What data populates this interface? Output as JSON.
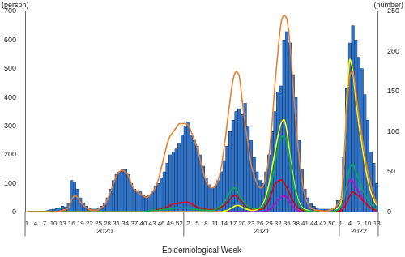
{
  "chart_data": {
    "type": "bar",
    "xlabel": "Epidemiological Week",
    "ylabel": "(person)",
    "y2label": "(number)",
    "categories": [
      "1",
      null,
      null,
      "4",
      null,
      null,
      "7",
      null,
      null,
      "10",
      null,
      null,
      "13",
      null,
      null,
      "16",
      null,
      null,
      "19",
      null,
      null,
      "22",
      null,
      null,
      "25",
      null,
      null,
      "28",
      null,
      null,
      "31",
      null,
      null,
      "34",
      null,
      null,
      "37",
      null,
      null,
      "40",
      null,
      null,
      "43",
      null,
      null,
      "46",
      null,
      null,
      "49",
      null,
      null,
      "52",
      null,
      null,
      "2",
      null,
      null,
      "5",
      null,
      null,
      "8",
      null,
      null,
      "11",
      null,
      null,
      "14",
      null,
      null,
      "17",
      null,
      null,
      "20",
      null,
      null,
      "23",
      null,
      null,
      "26",
      null,
      null,
      "29",
      null,
      null,
      "32",
      null,
      null,
      "35",
      null,
      null,
      "38",
      null,
      null,
      "41",
      null,
      null,
      "44",
      null,
      null,
      "47",
      null,
      null,
      "50",
      null,
      null,
      "1",
      null,
      null,
      "4",
      null,
      null,
      "7",
      null,
      null,
      "10",
      null,
      null,
      "13"
    ],
    "x_groups": [
      {
        "label": "2020",
        "size": 53
      },
      {
        "label": "2021",
        "size": 52
      },
      {
        "label": "2022",
        "size": 13
      }
    ],
    "ylim": [
      0,
      700
    ],
    "yticks": [
      0,
      100,
      200,
      300,
      400,
      500,
      600,
      700
    ],
    "y2lim": [
      0,
      250
    ],
    "y2ticks": [
      0,
      50,
      100,
      150,
      200,
      250
    ],
    "grid": false,
    "series": [
      {
        "type": "bar",
        "axis": "y",
        "color": "#2f73c9",
        "values": [
          0,
          0,
          0,
          0,
          0,
          2,
          3,
          5,
          8,
          10,
          12,
          15,
          20,
          18,
          30,
          110,
          105,
          80,
          50,
          30,
          20,
          15,
          10,
          10,
          15,
          20,
          30,
          50,
          80,
          110,
          130,
          140,
          150,
          150,
          130,
          100,
          80,
          75,
          70,
          60,
          55,
          60,
          70,
          90,
          100,
          120,
          140,
          170,
          200,
          210,
          220,
          240,
          270,
          300,
          315,
          270,
          250,
          230,
          200,
          160,
          120,
          95,
          85,
          90,
          110,
          140,
          180,
          230,
          280,
          320,
          350,
          360,
          340,
          380,
          300,
          250,
          190,
          140,
          110,
          100,
          140,
          200,
          280,
          350,
          420,
          440,
          600,
          630,
          590,
          480,
          400,
          250,
          150,
          80,
          50,
          30,
          20,
          15,
          10,
          10,
          10,
          10,
          10,
          15,
          40,
          40,
          190,
          430,
          590,
          650,
          600,
          540,
          500,
          410,
          320,
          210,
          170,
          100
        ]
      },
      {
        "type": "line",
        "axis": "y2",
        "color": "#ed7d31",
        "values": [
          0,
          0,
          0,
          0,
          0,
          0,
          0,
          0,
          0,
          0,
          0,
          1,
          2,
          3,
          5,
          15,
          20,
          18,
          12,
          8,
          5,
          3,
          2,
          2,
          3,
          5,
          8,
          15,
          25,
          35,
          45,
          50,
          52,
          50,
          45,
          35,
          28,
          25,
          22,
          20,
          18,
          20,
          25,
          30,
          40,
          55,
          70,
          85,
          95,
          100,
          105,
          110,
          110,
          110,
          108,
          100,
          90,
          80,
          65,
          50,
          38,
          32,
          30,
          32,
          40,
          55,
          80,
          110,
          140,
          165,
          175,
          170,
          140,
          110,
          85,
          60,
          45,
          35,
          30,
          32,
          45,
          70,
          110,
          160,
          200,
          235,
          245,
          240,
          210,
          160,
          110,
          70,
          40,
          20,
          10,
          5,
          3,
          2,
          2,
          1,
          1,
          2,
          3,
          5,
          10,
          15,
          60,
          130,
          170,
          175,
          150,
          120,
          95,
          70,
          50,
          35,
          20,
          10
        ]
      },
      {
        "type": "line",
        "axis": "y2",
        "color": "#00b050",
        "values": [
          0,
          0,
          0,
          0,
          0,
          0,
          0,
          0,
          0,
          0,
          0,
          0,
          0,
          0,
          0,
          0,
          0,
          0,
          0,
          0,
          0,
          0,
          0,
          0,
          0,
          0,
          0,
          0,
          0,
          0,
          0,
          0,
          0,
          0,
          0,
          0,
          0,
          0,
          0,
          0,
          1,
          1,
          2,
          2,
          2,
          3,
          3,
          3,
          4,
          4,
          5,
          5,
          5,
          5,
          5,
          4,
          3,
          3,
          2,
          2,
          2,
          2,
          2,
          3,
          5,
          8,
          12,
          18,
          25,
          30,
          28,
          22,
          15,
          10,
          7,
          5,
          4,
          4,
          5,
          8,
          15,
          25,
          40,
          60,
          80,
          92,
          95,
          85,
          65,
          40,
          22,
          10,
          5,
          2,
          1,
          1,
          0,
          0,
          0,
          0,
          0,
          0,
          0,
          1,
          3,
          5,
          15,
          35,
          55,
          60,
          50,
          40,
          30,
          22,
          15,
          10,
          6,
          3
        ]
      },
      {
        "type": "line",
        "axis": "y2",
        "color": "#ffff00",
        "values": [
          0,
          0,
          0,
          0,
          0,
          0,
          0,
          0,
          0,
          0,
          0,
          0,
          0,
          0,
          0,
          0,
          0,
          0,
          0,
          0,
          0,
          0,
          0,
          0,
          0,
          0,
          0,
          0,
          0,
          0,
          0,
          0,
          0,
          0,
          0,
          0,
          0,
          0,
          0,
          0,
          0,
          0,
          0,
          0,
          0,
          0,
          0,
          0,
          0,
          0,
          0,
          0,
          0,
          0,
          0,
          0,
          0,
          0,
          0,
          0,
          0,
          0,
          0,
          0,
          0,
          0,
          1,
          2,
          4,
          6,
          8,
          8,
          6,
          4,
          3,
          2,
          2,
          3,
          5,
          10,
          20,
          35,
          55,
          75,
          95,
          110,
          115,
          100,
          70,
          45,
          25,
          12,
          6,
          3,
          2,
          1,
          0,
          0,
          0,
          0,
          0,
          0,
          0,
          1,
          5,
          10,
          60,
          140,
          190,
          175,
          140,
          110,
          85,
          60,
          40,
          25,
          15,
          8
        ]
      },
      {
        "type": "line",
        "axis": "y2",
        "color": "#e00000",
        "values": [
          0,
          0,
          0,
          0,
          0,
          0,
          0,
          0,
          0,
          0,
          0,
          0,
          0,
          0,
          0,
          0,
          0,
          0,
          0,
          0,
          0,
          0,
          0,
          0,
          0,
          0,
          0,
          0,
          0,
          0,
          0,
          0,
          0,
          0,
          0,
          0,
          0,
          0,
          0,
          0,
          0,
          0,
          0,
          2,
          3,
          4,
          5,
          6,
          8,
          10,
          10,
          11,
          12,
          12,
          12,
          10,
          8,
          6,
          5,
          4,
          3,
          3,
          3,
          3,
          4,
          6,
          8,
          12,
          16,
          20,
          20,
          16,
          12,
          8,
          6,
          4,
          3,
          3,
          3,
          4,
          8,
          15,
          25,
          35,
          38,
          40,
          36,
          30,
          22,
          14,
          8,
          4,
          2,
          1,
          0,
          0,
          0,
          0,
          0,
          0,
          0,
          0,
          0,
          0,
          1,
          2,
          5,
          12,
          20,
          25,
          22,
          20,
          15,
          12,
          8,
          5,
          3,
          2
        ]
      },
      {
        "type": "line",
        "axis": "y2",
        "color": "#cc00cc",
        "values": [
          0,
          0,
          0,
          0,
          0,
          0,
          0,
          0,
          0,
          0,
          0,
          0,
          0,
          0,
          0,
          0,
          0,
          0,
          0,
          0,
          0,
          0,
          0,
          0,
          0,
          0,
          0,
          0,
          0,
          0,
          0,
          0,
          0,
          0,
          0,
          0,
          0,
          0,
          0,
          0,
          0,
          0,
          0,
          0,
          0,
          0,
          0,
          0,
          0,
          0,
          0,
          0,
          0,
          0,
          0,
          0,
          0,
          0,
          0,
          0,
          0,
          0,
          0,
          0,
          0,
          0,
          0,
          0,
          0,
          0,
          0,
          0,
          0,
          0,
          0,
          0,
          0,
          0,
          0,
          0,
          1,
          3,
          6,
          10,
          15,
          18,
          20,
          18,
          12,
          6,
          3,
          1,
          0,
          0,
          0,
          0,
          0,
          0,
          0,
          0,
          0,
          0,
          0,
          0,
          0,
          2,
          10,
          30,
          40,
          38,
          30,
          25,
          18,
          12,
          8,
          5,
          3,
          1
        ]
      }
    ]
  }
}
